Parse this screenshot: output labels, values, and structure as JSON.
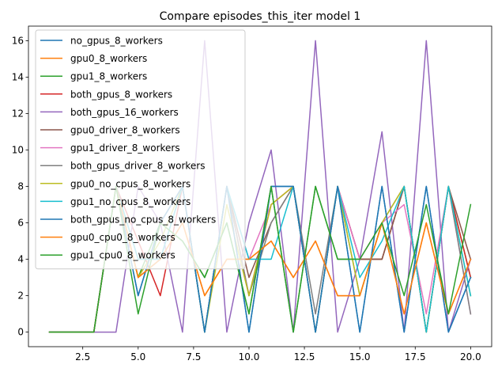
{
  "chart_data": {
    "type": "line",
    "title": "Compare episodes_this_iter model 1",
    "xlabel": "",
    "ylabel": "",
    "xlim": [
      0.05,
      20.95
    ],
    "ylim": [
      -0.8,
      16.8
    ],
    "grid": false,
    "legend_position": "top-left",
    "x": [
      1,
      2,
      3,
      4,
      5,
      6,
      7,
      8,
      9,
      10,
      11,
      12,
      13,
      14,
      15,
      16,
      17,
      18,
      19,
      20
    ],
    "xticks": [
      2.5,
      5.0,
      7.5,
      10.0,
      12.5,
      15.0,
      17.5,
      20.0
    ],
    "yticks": [
      0,
      2,
      4,
      6,
      8,
      10,
      12,
      14,
      16
    ],
    "series": [
      {
        "name": "no_gpus_8_workers",
        "color": "#1f77b4",
        "values": [
          0,
          0,
          0,
          8,
          2,
          6,
          8,
          0,
          8,
          0,
          8,
          8,
          0,
          8,
          0,
          8,
          0,
          8,
          0,
          3
        ]
      },
      {
        "name": "gpu0_8_workers",
        "color": "#ff7f0e",
        "values": [
          0,
          0,
          0,
          8,
          3,
          4,
          6,
          2,
          4,
          4,
          5,
          3,
          5,
          2,
          2,
          6,
          1,
          6,
          1,
          4
        ]
      },
      {
        "name": "gpu1_8_workers",
        "color": "#2ca02c",
        "values": [
          0,
          0,
          0,
          8,
          3,
          6,
          5,
          3,
          6,
          1,
          8,
          0,
          8,
          4,
          4,
          4,
          8,
          0,
          8,
          3
        ]
      },
      {
        "name": "both_gpus_8_workers",
        "color": "#d62728",
        "values": [
          0,
          0,
          0,
          8,
          5,
          2,
          8,
          0,
          8,
          2,
          7,
          8,
          0,
          8,
          4,
          4,
          8,
          0,
          8,
          3
        ]
      },
      {
        "name": "both_gpus_16_workers",
        "color": "#9467bd",
        "values": [
          0,
          0,
          0,
          0,
          8,
          6,
          0,
          16,
          0,
          6,
          10,
          0,
          16,
          0,
          4,
          11,
          0,
          16,
          0,
          4
        ]
      },
      {
        "name": "gpu0_driver_8_workers",
        "color": "#8c564b",
        "values": [
          0,
          0,
          0,
          8,
          3,
          4,
          8,
          0,
          8,
          3,
          6,
          8,
          0,
          8,
          4,
          4,
          8,
          0,
          8,
          4
        ]
      },
      {
        "name": "gpu1_driver_8_workers",
        "color": "#e377c2",
        "values": [
          0,
          0,
          0,
          8,
          4,
          4,
          8,
          0,
          8,
          4,
          7,
          8,
          0,
          8,
          4,
          6,
          7,
          1,
          8,
          1
        ]
      },
      {
        "name": "both_gpus_driver_8_workers",
        "color": "#7f7f7f",
        "values": [
          0,
          0,
          0,
          8,
          4,
          4,
          8,
          0,
          8,
          2,
          6,
          8,
          1,
          8,
          2,
          6,
          8,
          0,
          8,
          1
        ]
      },
      {
        "name": "gpu0_no_cpus_8_workers",
        "color": "#bcbd22",
        "values": [
          0,
          0,
          0,
          8,
          3,
          5,
          8,
          0,
          7,
          2,
          7,
          8,
          0,
          8,
          2,
          6,
          8,
          0,
          8,
          2
        ]
      },
      {
        "name": "gpu1_no_cpus_8_workers",
        "color": "#17becf",
        "values": [
          0,
          0,
          0,
          8,
          4,
          4,
          8,
          0,
          8,
          4,
          4,
          8,
          0,
          8,
          3,
          5,
          8,
          0,
          8,
          2
        ]
      },
      {
        "name": "both_gpus_no_cpus_8_workers",
        "color": "#1f77b4",
        "values": [
          0,
          0,
          0,
          8,
          2,
          6,
          8,
          0,
          8,
          0,
          8,
          8,
          0,
          8,
          0,
          8,
          0,
          8,
          0,
          3
        ]
      },
      {
        "name": "gpu0_cpu0_8_workers",
        "color": "#ff7f0e",
        "values": [
          0,
          0,
          0,
          8,
          3,
          4,
          6,
          2,
          4,
          4,
          5,
          3,
          5,
          2,
          2,
          6,
          1,
          6,
          1,
          4
        ]
      },
      {
        "name": "gpu1_cpu0_8_workers",
        "color": "#2ca02c",
        "values": [
          0,
          0,
          0,
          8,
          1,
          6,
          5,
          3,
          6,
          1,
          8,
          0,
          8,
          4,
          4,
          6,
          2,
          7,
          1,
          7
        ]
      }
    ]
  }
}
